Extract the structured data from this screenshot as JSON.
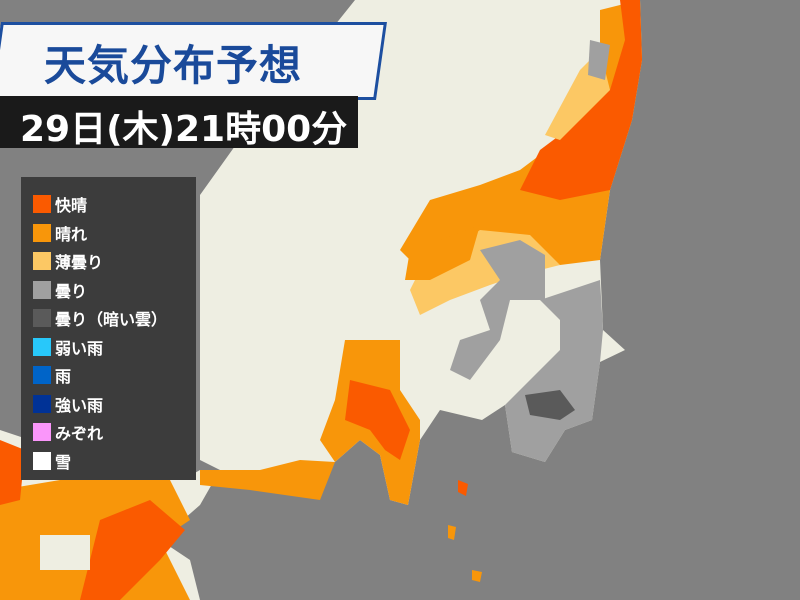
{
  "header": {
    "title": "天気分布予想",
    "datetime": "29日(木)21時00分"
  },
  "colors": {
    "sea": "#818181",
    "land": "#eeeee2",
    "boundary": "#cfcfc2",
    "accent": "#1a4a9a"
  },
  "legend": [
    {
      "label": "快晴",
      "color": "#fa5a00"
    },
    {
      "label": "晴れ",
      "color": "#f8960a"
    },
    {
      "label": "薄曇り",
      "color": "#fcc864"
    },
    {
      "label": "曇り",
      "color": "#a0a0a0"
    },
    {
      "label": "曇り（暗い雲）",
      "color": "#5a5a5a"
    },
    {
      "label": "弱い雨",
      "color": "#28c8fa"
    },
    {
      "label": "雨",
      "color": "#0064c8"
    },
    {
      "label": "強い雨",
      "color": "#003296"
    },
    {
      "label": "みぞれ",
      "color": "#fa96fa"
    },
    {
      "label": "雪",
      "color": "#ffffff"
    }
  ]
}
